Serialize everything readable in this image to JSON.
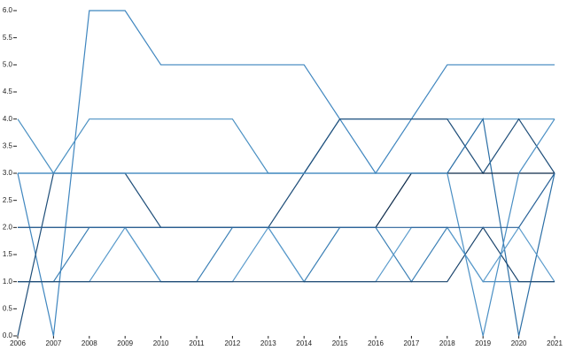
{
  "chart_data": {
    "type": "line",
    "x": [
      2006,
      2007,
      2008,
      2009,
      2010,
      2011,
      2012,
      2013,
      2014,
      2015,
      2016,
      2017,
      2018,
      2019,
      2020,
      2021
    ],
    "xlim": [
      2006,
      2021
    ],
    "xticks": [
      2006,
      2007,
      2008,
      2009,
      2010,
      2011,
      2012,
      2013,
      2014,
      2015,
      2016,
      2017,
      2018,
      2019,
      2020,
      2021
    ],
    "ylim": [
      0,
      6
    ],
    "yticks": [
      {
        "value": 0,
        "label": "0.0"
      },
      {
        "value": 0.5,
        "label": "0.5"
      },
      {
        "value": 1,
        "label": "1.0"
      },
      {
        "value": 1.5,
        "label": "1.5"
      },
      {
        "value": 2,
        "label": "2.0"
      },
      {
        "value": 2.5,
        "label": "2.5"
      },
      {
        "value": 3,
        "label": "3.0"
      },
      {
        "value": 3.5,
        "label": "3.5"
      },
      {
        "value": 4,
        "label": "4.0"
      },
      {
        "value": 4.5,
        "label": "4.5"
      },
      {
        "value": 5,
        "label": "5.0"
      },
      {
        "value": 5.5,
        "label": "5.5"
      },
      {
        "value": 6,
        "label": "6.0"
      }
    ],
    "series": [
      {
        "color": "#3f86bf",
        "values": [
          3,
          0,
          6,
          6,
          5,
          5,
          5,
          5,
          5,
          4,
          3,
          4,
          5,
          5,
          5,
          5
        ]
      },
      {
        "color": "#4a90c2",
        "values": [
          4,
          3,
          4,
          4,
          4,
          4,
          4,
          3,
          3,
          4,
          4,
          4,
          4,
          4,
          4,
          4
        ]
      },
      {
        "color": "#1f4e79",
        "values": [
          0,
          3,
          3,
          3,
          2,
          2,
          2,
          2,
          3,
          4,
          4,
          4,
          4,
          3,
          4,
          3
        ]
      },
      {
        "color": "#2c6fa6",
        "values": [
          3,
          3,
          3,
          3,
          3,
          3,
          3,
          3,
          3,
          3,
          3,
          3,
          3,
          4,
          0,
          3
        ]
      },
      {
        "color": "#0d2a4a",
        "values": [
          2,
          2,
          2,
          2,
          2,
          2,
          2,
          2,
          2,
          2,
          2,
          3,
          3,
          3,
          3,
          3
        ]
      },
      {
        "color": "#3a7fb5",
        "values": [
          1,
          1,
          2,
          2,
          1,
          1,
          2,
          2,
          1,
          2,
          2,
          1,
          2,
          1,
          1,
          1
        ]
      },
      {
        "color": "#5a9bcc",
        "values": [
          1,
          1,
          1,
          2,
          1,
          1,
          1,
          2,
          1,
          1,
          1,
          2,
          2,
          1,
          2,
          1
        ]
      },
      {
        "color": "#18426b",
        "values": [
          1,
          1,
          1,
          1,
          1,
          1,
          1,
          1,
          1,
          1,
          1,
          1,
          1,
          2,
          1,
          1
        ]
      },
      {
        "color": "#4a8fc4",
        "values": [
          3,
          3,
          3,
          3,
          3,
          3,
          3,
          3,
          3,
          3,
          3,
          3,
          3,
          0,
          3,
          4
        ]
      },
      {
        "color": "#2a6399",
        "values": [
          2,
          2,
          2,
          2,
          2,
          2,
          2,
          2,
          2,
          2,
          2,
          2,
          2,
          2,
          2,
          3
        ]
      }
    ]
  }
}
